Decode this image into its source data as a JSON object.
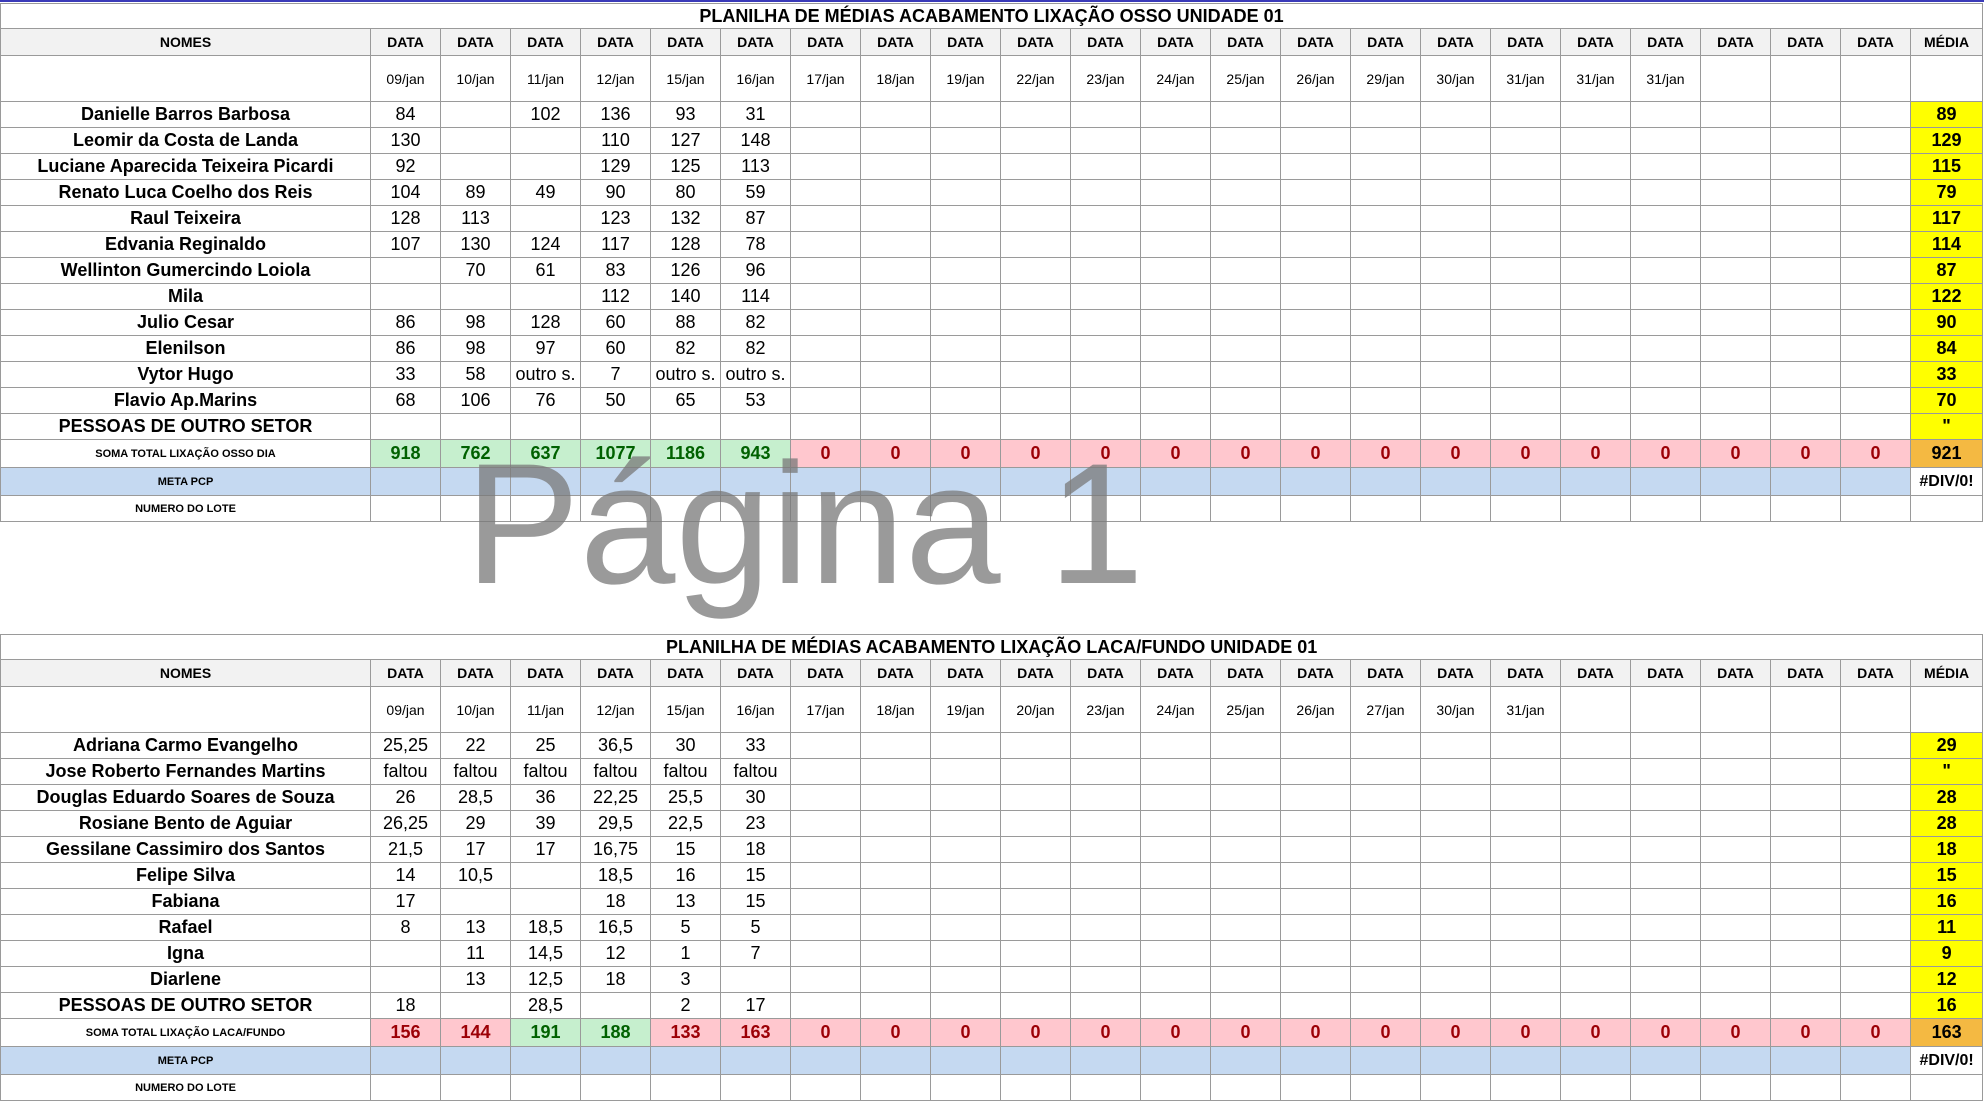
{
  "watermark": "Página 1",
  "table1": {
    "title": "PLANILHA DE MÉDIAS ACABAMENTO LIXAÇÃO OSSO UNIDADE 01",
    "header_name": "NOMES",
    "header_date": "DATA",
    "header_avg": "MÉDIA",
    "dates": [
      "09/jan",
      "10/jan",
      "11/jan",
      "12/jan",
      "15/jan",
      "16/jan",
      "17/jan",
      "18/jan",
      "19/jan",
      "22/jan",
      "23/jan",
      "24/jan",
      "25/jan",
      "26/jan",
      "29/jan",
      "30/jan",
      "31/jan",
      "31/jan",
      "31/jan",
      "",
      "",
      ""
    ],
    "rows": [
      {
        "name": "Danielle Barros Barbosa",
        "values": [
          "84",
          "",
          "102",
          "136",
          "93",
          "31"
        ],
        "avg": "89"
      },
      {
        "name": "Leomir da Costa de Landa",
        "values": [
          "130",
          "",
          "",
          "110",
          "127",
          "148"
        ],
        "avg": "129"
      },
      {
        "name": "Luciane Aparecida Teixeira Picardi",
        "values": [
          "92",
          "",
          "",
          "129",
          "125",
          "113"
        ],
        "avg": "115"
      },
      {
        "name": "Renato Luca Coelho dos Reis",
        "values": [
          "104",
          "89",
          "49",
          "90",
          "80",
          "59"
        ],
        "avg": "79"
      },
      {
        "name": "Raul Teixeira",
        "values": [
          "128",
          "113",
          "",
          "123",
          "132",
          "87"
        ],
        "avg": "117"
      },
      {
        "name": "Edvania Reginaldo",
        "values": [
          "107",
          "130",
          "124",
          "117",
          "128",
          "78"
        ],
        "avg": "114"
      },
      {
        "name": "Wellinton Gumercindo Loiola",
        "values": [
          "",
          "70",
          "61",
          "83",
          "126",
          "96"
        ],
        "avg": "87"
      },
      {
        "name": "Mila",
        "values": [
          "",
          "",
          "",
          "112",
          "140",
          "114"
        ],
        "avg": "122"
      },
      {
        "name": "Julio Cesar",
        "values": [
          "86",
          "98",
          "128",
          "60",
          "88",
          "82"
        ],
        "avg": "90"
      },
      {
        "name": "Elenilson",
        "values": [
          "86",
          "98",
          "97",
          "60",
          "82",
          "82"
        ],
        "avg": "84"
      },
      {
        "name": "Vytor Hugo",
        "values": [
          "33",
          "58",
          "outro s.",
          "7",
          "outro s.",
          "outro s."
        ],
        "avg": "33"
      },
      {
        "name": "Flavio Ap.Marins",
        "values": [
          "68",
          "106",
          "76",
          "50",
          "65",
          "53"
        ],
        "avg": "70"
      },
      {
        "name": "PESSOAS DE OUTRO SETOR",
        "values": [
          "",
          "",
          "",
          "",
          "",
          ""
        ],
        "avg": "\""
      }
    ],
    "sum_label": "SOMA TOTAL LIXAÇÃO OSSO DIA",
    "sums": [
      "918",
      "762",
      "637",
      "1077",
      "1186",
      "943",
      "0",
      "0",
      "0",
      "0",
      "0",
      "0",
      "0",
      "0",
      "0",
      "0",
      "0",
      "0",
      "0",
      "0",
      "0",
      "0"
    ],
    "sum_classes": [
      "pos",
      "pos",
      "pos",
      "pos",
      "pos",
      "pos",
      "neg",
      "neg",
      "neg",
      "neg",
      "neg",
      "neg",
      "neg",
      "neg",
      "neg",
      "neg",
      "neg",
      "neg",
      "neg",
      "neg",
      "neg",
      "neg"
    ],
    "sum_avg": "921",
    "meta_label": "META PCP",
    "meta_avg": "#DIV/0!",
    "lote_label": "NUMERO DO LOTE"
  },
  "table2": {
    "title": "PLANILHA DE MÉDIAS ACABAMENTO LIXAÇÃO LACA/FUNDO UNIDADE 01",
    "header_name": "NOMES",
    "header_date": "DATA",
    "header_avg": "MÉDIA",
    "dates": [
      "09/jan",
      "10/jan",
      "11/jan",
      "12/jan",
      "15/jan",
      "16/jan",
      "17/jan",
      "18/jan",
      "19/jan",
      "20/jan",
      "23/jan",
      "24/jan",
      "25/jan",
      "26/jan",
      "27/jan",
      "30/jan",
      "31/jan",
      "",
      "",
      "",
      "",
      ""
    ],
    "rows": [
      {
        "name": "Adriana Carmo Evangelho",
        "values": [
          "25,25",
          "22",
          "25",
          "36,5",
          "30",
          "33"
        ],
        "avg": "29"
      },
      {
        "name": "Jose Roberto Fernandes Martins",
        "values": [
          "faltou",
          "faltou",
          "faltou",
          "faltou",
          "faltou",
          "faltou"
        ],
        "avg": "\""
      },
      {
        "name": "Douglas Eduardo Soares de Souza",
        "values": [
          "26",
          "28,5",
          "36",
          "22,25",
          "25,5",
          "30"
        ],
        "avg": "28"
      },
      {
        "name": "Rosiane Bento de Aguiar",
        "values": [
          "26,25",
          "29",
          "39",
          "29,5",
          "22,5",
          "23"
        ],
        "avg": "28"
      },
      {
        "name": "Gessilane Cassimiro dos Santos",
        "values": [
          "21,5",
          "17",
          "17",
          "16,75",
          "15",
          "18"
        ],
        "avg": "18"
      },
      {
        "name": "Felipe Silva",
        "values": [
          "14",
          "10,5",
          "",
          "18,5",
          "16",
          "15"
        ],
        "avg": "15"
      },
      {
        "name": "Fabiana",
        "values": [
          "17",
          "",
          "",
          "18",
          "13",
          "15"
        ],
        "avg": "16"
      },
      {
        "name": "Rafael",
        "values": [
          "8",
          "13",
          "18,5",
          "16,5",
          "5",
          "5"
        ],
        "avg": "11"
      },
      {
        "name": "Igna",
        "values": [
          "",
          "11",
          "14,5",
          "12",
          "1",
          "7"
        ],
        "avg": "9"
      },
      {
        "name": "Diarlene",
        "values": [
          "",
          "13",
          "12,5",
          "18",
          "3",
          ""
        ],
        "avg": "12"
      },
      {
        "name": "PESSOAS DE OUTRO SETOR",
        "values": [
          "18",
          "",
          "28,5",
          "",
          "2",
          "17"
        ],
        "avg": "16"
      }
    ],
    "sum_label": "SOMA TOTAL LIXAÇÃO LACA/FUNDO",
    "sums": [
      "156",
      "144",
      "191",
      "188",
      "133",
      "163",
      "0",
      "0",
      "0",
      "0",
      "0",
      "0",
      "0",
      "0",
      "0",
      "0",
      "0",
      "0",
      "0",
      "0",
      "0",
      "0"
    ],
    "sum_classes": [
      "neg",
      "neg",
      "pos",
      "pos",
      "neg",
      "neg",
      "neg",
      "neg",
      "neg",
      "neg",
      "neg",
      "neg",
      "neg",
      "neg",
      "neg",
      "neg",
      "neg",
      "neg",
      "neg",
      "neg",
      "neg",
      "neg"
    ],
    "sum_avg": "163",
    "meta_label": "META PCP",
    "meta_avg": "#DIV/0!",
    "lote_label": "NUMERO DO LOTE"
  }
}
